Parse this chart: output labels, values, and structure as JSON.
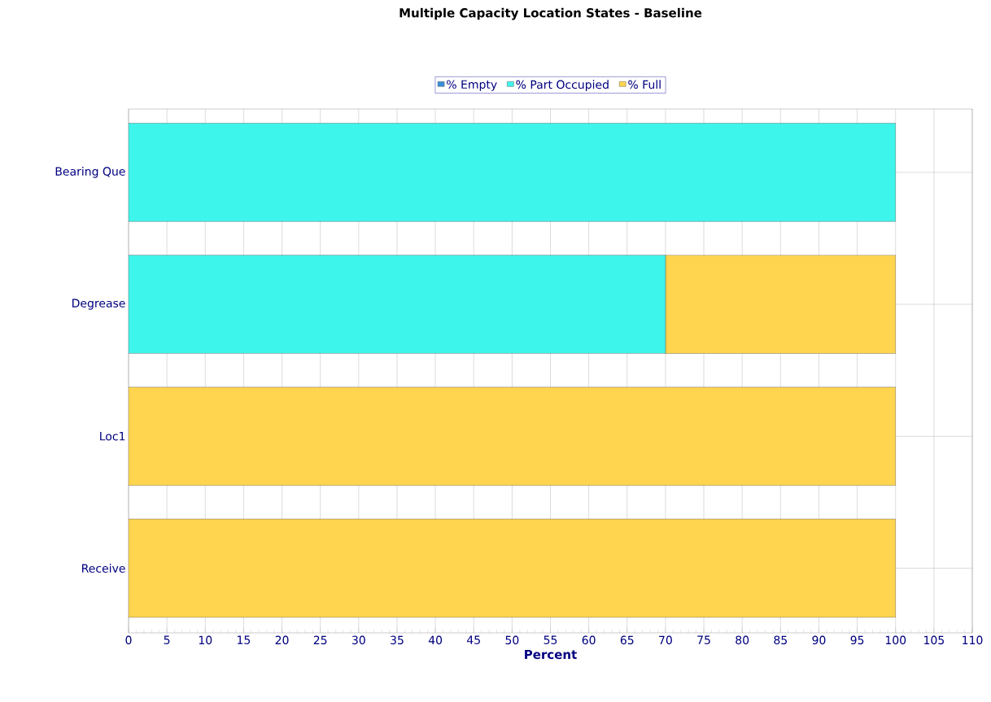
{
  "chart_data": {
    "type": "bar",
    "orientation": "horizontal",
    "stacked": true,
    "title": "Multiple Capacity Location States - Baseline",
    "xlabel": "Percent",
    "categories": [
      "Bearing Que",
      "Degrease",
      "Loc1",
      "Receive"
    ],
    "series": [
      {
        "name": "% Empty",
        "color": "#3a8fd8",
        "values": [
          0,
          0,
          0,
          0
        ]
      },
      {
        "name": "% Part Occupied",
        "color": "#3ef5ec",
        "values": [
          100,
          70,
          0,
          0
        ]
      },
      {
        "name": "% Full",
        "color": "#ffd54f",
        "values": [
          0,
          30,
          100,
          100
        ]
      }
    ],
    "xlim": [
      0,
      110
    ],
    "xticks": [
      0,
      5,
      10,
      15,
      20,
      25,
      30,
      35,
      40,
      45,
      50,
      55,
      60,
      65,
      70,
      75,
      80,
      85,
      90,
      95,
      100,
      105,
      110
    ],
    "grid": true,
    "legend": "top"
  }
}
